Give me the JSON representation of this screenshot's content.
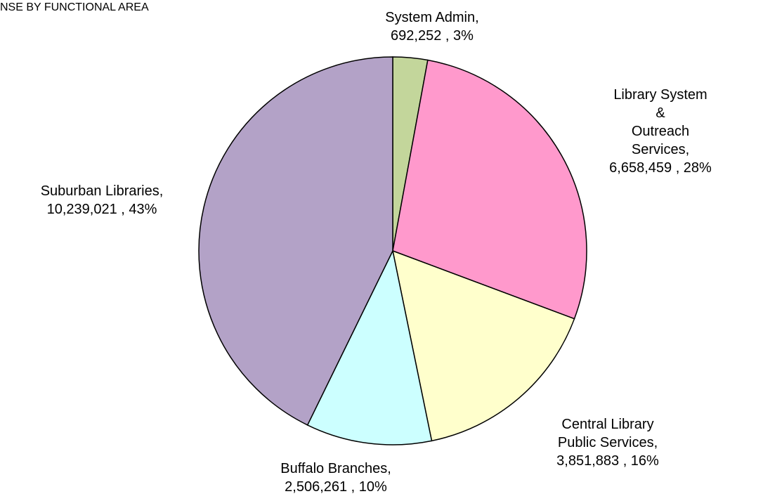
{
  "chart_data": {
    "type": "pie",
    "title": "NSE BY FUNCTIONAL AREA",
    "categories": [
      "System Admin,",
      "Library System &\nOutreach Services,",
      "Central Library\nPublic Services,",
      "Buffalo Branches,",
      "Suburban Libraries,"
    ],
    "values": [
      692252,
      6658459,
      3851883,
      2506261,
      10239021
    ],
    "value_labels": [
      "692,252 , 3%",
      "6,658,459 , 28%",
      "3,851,883 , 16%",
      "2,506,261 , 10%",
      "10,239,021 , 43%"
    ],
    "colors": [
      "#c3d69b",
      "#ff99cc",
      "#ffffcc",
      "#ccffff",
      "#b3a2c7"
    ]
  }
}
